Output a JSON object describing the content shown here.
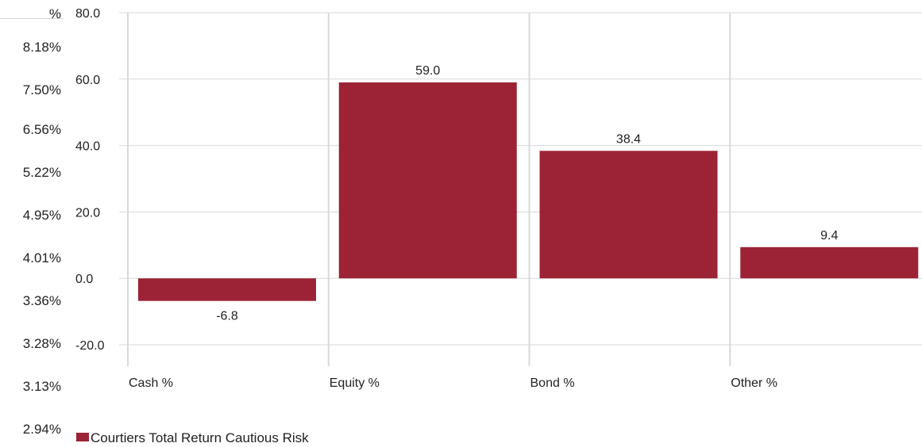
{
  "left_column": {
    "header": "%",
    "items": [
      "8.18%",
      "7.50%",
      "6.56%",
      "5.22%",
      "4.95%",
      "4.01%",
      "3.36%",
      "3.28%",
      "3.13%",
      "2.94%"
    ]
  },
  "chart_data": {
    "type": "bar",
    "categories": [
      "Cash %",
      "Equity %",
      "Bond %",
      "Other %"
    ],
    "series": [
      {
        "name": "Courtiers Total Return Cautious Risk",
        "values": [
          -6.8,
          59.0,
          38.4,
          9.4
        ]
      }
    ],
    "data_labels": [
      "-6.8",
      "59.0",
      "38.4",
      "9.4"
    ],
    "y_ticks": [
      "80.0",
      "60.0",
      "40.0",
      "20.0",
      "0.0",
      "-20.0"
    ],
    "ylim": [
      -20,
      80
    ],
    "grid": true,
    "legend_position": "bottom-left",
    "bar_color": "#9b2335",
    "grid_color": "#d9d9d9"
  }
}
